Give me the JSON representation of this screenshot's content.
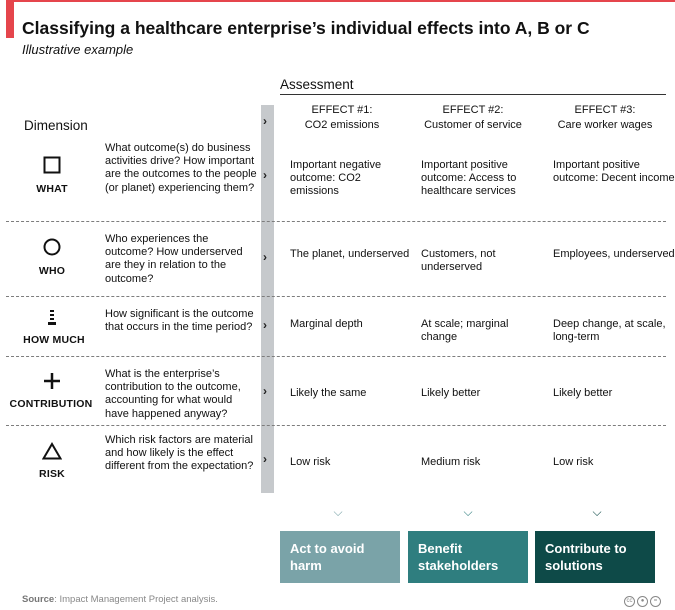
{
  "title": "Classifying a healthcare enterprise’s individual effects into A, B or C",
  "subtitle": "Illustrative example",
  "assessment_label": "Assessment",
  "dimension_label": "Dimension",
  "effects": [
    {
      "number": "EFFECT #1:",
      "name": "CO2 emissions"
    },
    {
      "number": "EFFECT #2:",
      "name": "Customer of service"
    },
    {
      "number": "EFFECT #3:",
      "name": "Care worker wages"
    }
  ],
  "rows": [
    {
      "dimension": "WHAT",
      "icon": "square-icon",
      "question": "What outcome(s) do business activities drive? How important are the outcomes to the people (or planet) experiencing them?",
      "cells": [
        "Important negative outcome: CO2 emissions",
        "Important positive outcome: Access to healthcare services",
        "Important positive outcome: Decent income"
      ]
    },
    {
      "dimension": "WHO",
      "icon": "circle-icon",
      "question": "Who experiences the outcome? How underserved are they in relation to the outcome?",
      "cells": [
        "The planet, underserved",
        "Customers, not underserved",
        "Employees, underserved"
      ]
    },
    {
      "dimension": "HOW MUCH",
      "icon": "bar-stack-icon",
      "question": "How significant is the outcome that occurs in the time period?",
      "cells": [
        "Marginal depth",
        "At scale; marginal change",
        "Deep change, at scale, long-term"
      ]
    },
    {
      "dimension": "CONTRIBUTION",
      "icon": "plus-icon",
      "question": "What is the enterprise’s contribution to the outcome, accounting for what would have happened anyway?",
      "cells": [
        "Likely the same",
        "Likely better",
        "Likely better"
      ]
    },
    {
      "dimension": "RISK",
      "icon": "triangle-icon",
      "question": "Which risk factors are material and how likely is the effect different from the expectation?",
      "cells": [
        "Low risk",
        "Medium risk",
        "Low risk"
      ]
    }
  ],
  "outcomes": [
    {
      "label": "Act to avoid harm",
      "color": "#7aa3a8"
    },
    {
      "label": "Benefit stakeholders",
      "color": "#2f7e7f"
    },
    {
      "label": "Contribute to solutions",
      "color": "#0e4a48"
    }
  ],
  "source": {
    "prefix": "Source",
    "text": ": Impact Management Project analysis."
  },
  "license_icons": [
    "cc-icon",
    "by-icon",
    "nd-icon"
  ]
}
